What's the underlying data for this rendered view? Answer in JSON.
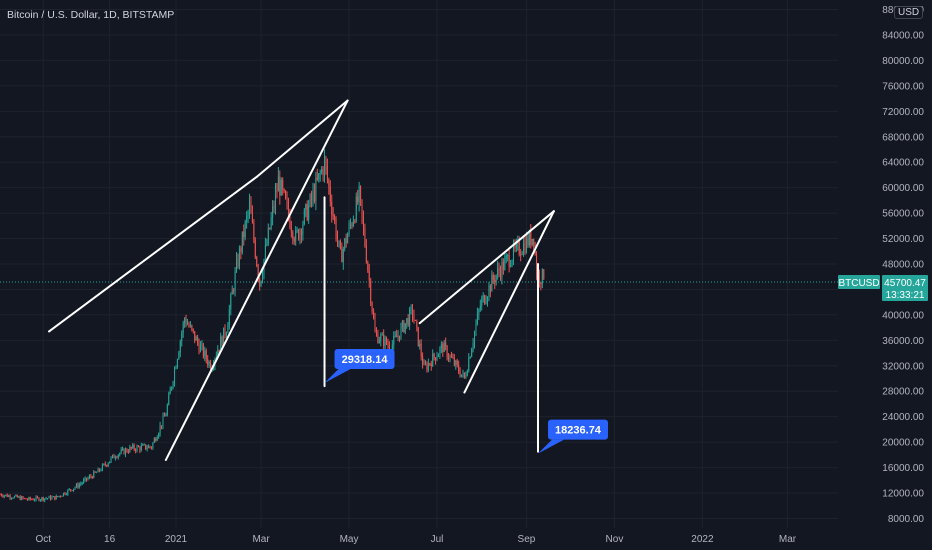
{
  "header": {
    "symbol_title": "Bitcoin / U.S. Dollar, 1D, BITSTAMP",
    "currency": "USD"
  },
  "price_tag": {
    "ticker": "BTCUSD",
    "price": "45700.47",
    "countdown": "13:33:21",
    "color": "#26a69a"
  },
  "chart_data": {
    "type": "candlestick",
    "title": "Bitcoin / U.S. Dollar, 1D, BITSTAMP",
    "y_axis": {
      "ticks": [
        8000,
        12000,
        16000,
        20000,
        24000,
        28000,
        32000,
        36000,
        40000,
        44000,
        48000,
        52000,
        56000,
        60000,
        64000,
        68000,
        72000,
        76000,
        80000,
        84000,
        88000
      ],
      "tick_labels": [
        "8000.00",
        "12000.00",
        "16000.00",
        "20000.00",
        "24000.00",
        "28000.00",
        "32000.00",
        "36000.00",
        "40000.00",
        "44000.00",
        "48000.00",
        "52000.00",
        "56000.00",
        "60000.00",
        "64000.00",
        "68000.00",
        "72000.00",
        "76000.00",
        "80000.00",
        "84000.00",
        "88000.00"
      ],
      "range": [
        6500,
        89500
      ],
      "scale": "linear"
    },
    "x_axis": {
      "range": [
        "2020-09-01",
        "2022-04-05"
      ],
      "ticks": [
        {
          "date": "2020-10-01",
          "label": "Oct"
        },
        {
          "date": "2020-11-16",
          "label": "16"
        },
        {
          "date": "2021-01-01",
          "label": "2021"
        },
        {
          "date": "2021-03-01",
          "label": "Mar"
        },
        {
          "date": "2021-05-01",
          "label": "May"
        },
        {
          "date": "2021-07-01",
          "label": "Jul"
        },
        {
          "date": "2021-09-01",
          "label": "Sep"
        },
        {
          "date": "2021-11-01",
          "label": "Nov"
        },
        {
          "date": "2022-01-01",
          "label": "2022"
        },
        {
          "date": "2022-03-01",
          "label": "Mar"
        }
      ]
    },
    "series": [
      {
        "path": [
          [
            "2020-09-01",
            11800
          ],
          [
            "2020-09-20",
            11000
          ],
          [
            "2020-10-10",
            11300
          ],
          [
            "2020-10-25",
            13200
          ],
          [
            "2020-11-08",
            15400
          ],
          [
            "2020-11-20",
            18000
          ],
          [
            "2020-12-01",
            19000
          ],
          [
            "2020-12-15",
            19300
          ],
          [
            "2020-12-25",
            24500
          ],
          [
            "2021-01-07",
            39500
          ],
          [
            "2021-01-15",
            36000
          ],
          [
            "2021-01-25",
            32000
          ],
          [
            "2021-02-05",
            38000
          ],
          [
            "2021-02-12",
            47500
          ],
          [
            "2021-02-21",
            57000
          ],
          [
            "2021-02-28",
            45000
          ],
          [
            "2021-03-13",
            61000
          ],
          [
            "2021-03-25",
            52000
          ],
          [
            "2021-04-05",
            58000
          ],
          [
            "2021-04-14",
            64000
          ],
          [
            "2021-04-25",
            49000
          ],
          [
            "2021-05-08",
            58500
          ],
          [
            "2021-05-13",
            49500
          ],
          [
            "2021-05-19",
            37000
          ],
          [
            "2021-05-30",
            35000
          ],
          [
            "2021-06-14",
            40500
          ],
          [
            "2021-06-22",
            31500
          ],
          [
            "2021-07-05",
            35000
          ],
          [
            "2021-07-20",
            30000
          ],
          [
            "2021-07-31",
            41500
          ],
          [
            "2021-08-10",
            46000
          ],
          [
            "2021-08-20",
            49000
          ],
          [
            "2021-09-06",
            52500
          ],
          [
            "2021-09-08",
            46500
          ],
          [
            "2021-09-13",
            45700
          ]
        ]
      }
    ],
    "trendlines": [
      {
        "from": [
          "2020-10-05",
          37400
        ],
        "to": [
          "2021-02-26",
          61700
        ]
      },
      {
        "from": [
          "2021-02-26",
          61700
        ],
        "to": [
          "2021-04-30",
          73700
        ]
      },
      {
        "from": [
          "2020-12-25",
          17200
        ],
        "to": [
          "2021-04-30",
          73700
        ]
      },
      {
        "from": [
          "2021-04-14",
          58500
        ],
        "to": [
          "2021-04-14",
          28800
        ]
      },
      {
        "from": [
          "2021-06-19",
          38700
        ],
        "to": [
          "2021-09-20",
          56300
        ]
      },
      {
        "from": [
          "2021-07-20",
          27800
        ],
        "to": [
          "2021-09-20",
          56300
        ]
      },
      {
        "from": [
          "2021-09-09",
          48000
        ],
        "to": [
          "2021-09-09",
          18500
        ]
      }
    ],
    "annotations": [
      {
        "label": "29318.14",
        "at": [
          "2021-04-14",
          29300
        ]
      },
      {
        "label": "18236.74",
        "at": [
          "2021-09-09",
          18200
        ]
      }
    ],
    "last_price": 45700.47,
    "colors": {
      "up": "#26a69a",
      "down": "#ef5350",
      "trendline": "#ffffff",
      "callout": "#2962ff",
      "background": "#131722",
      "grid": "#1e222d"
    }
  }
}
